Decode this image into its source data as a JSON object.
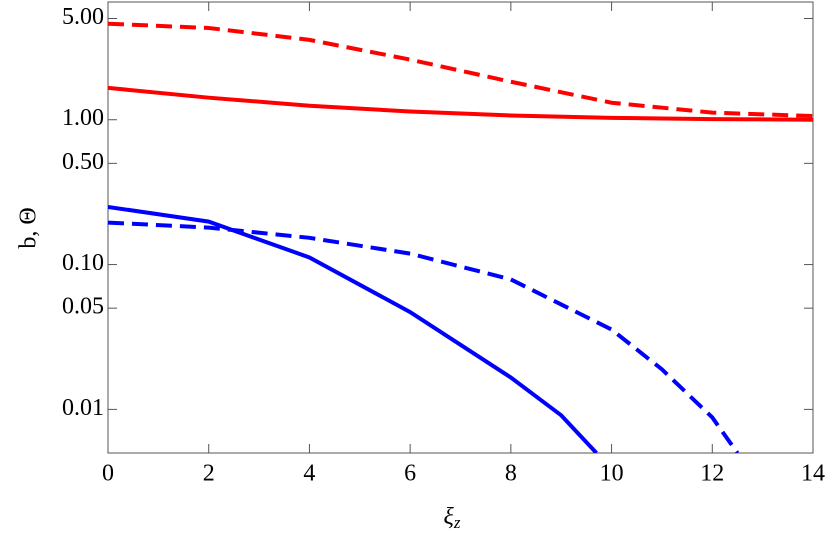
{
  "chart_data": {
    "type": "line",
    "ylabel": "b, Θ",
    "xlabel": "ξ",
    "xlabel_subscript": "z",
    "xlim": [
      0,
      14
    ],
    "xticks": [
      0,
      2,
      4,
      6,
      8,
      10,
      12,
      14
    ],
    "ylim": [
      0.005,
      6.5
    ],
    "log_y": true,
    "yticks": [
      0.01,
      0.05,
      {
        "value": 0.1,
        "label": "0.10"
      },
      {
        "value": 0.5,
        "label": "0.50"
      },
      {
        "value": 1,
        "label": "1.00"
      },
      {
        "value": 5,
        "label": "5.00"
      }
    ],
    "series": [
      {
        "color": "#ff0000",
        "style": "dashed",
        "x": [
          0,
          2,
          4,
          6,
          8,
          10,
          12,
          14
        ],
        "values": [
          4.6,
          4.3,
          3.56,
          2.6,
          1.83,
          1.31,
          1.12,
          1.06
        ]
      },
      {
        "color": "#ff0000",
        "style": "solid",
        "x": [
          0,
          2,
          4,
          6,
          8,
          10,
          12,
          14
        ],
        "values": [
          1.66,
          1.42,
          1.25,
          1.14,
          1.07,
          1.03,
          1.01,
          1.0
        ]
      },
      {
        "color": "#0000ff",
        "style": "solid",
        "x": [
          0,
          2,
          4,
          6,
          8,
          9,
          9.7
        ],
        "values": [
          0.25,
          0.198,
          0.112,
          0.047,
          0.0166,
          0.0091,
          0.005
        ]
      },
      {
        "color": "#0000ff",
        "style": "dashed",
        "x": [
          0,
          2,
          4,
          6,
          8,
          10,
          11,
          12,
          12.5
        ],
        "values": [
          0.195,
          0.18,
          0.153,
          0.119,
          0.079,
          0.0356,
          0.0189,
          0.0088,
          0.005
        ]
      }
    ]
  }
}
